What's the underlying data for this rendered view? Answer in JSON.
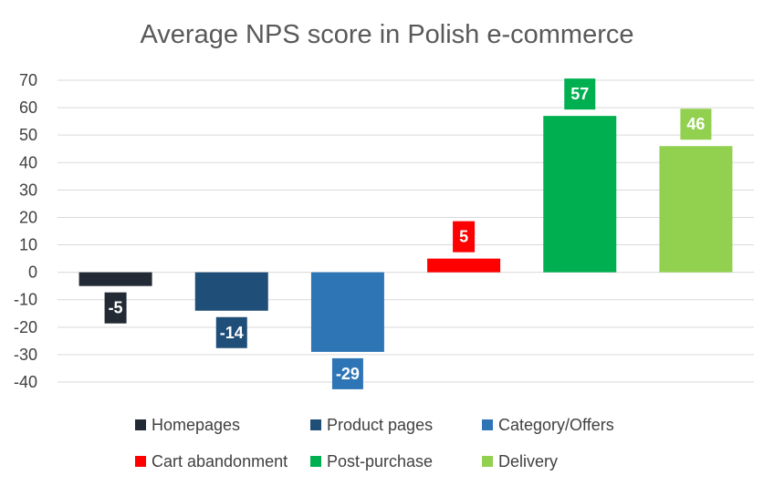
{
  "chart_data": {
    "type": "bar",
    "title": "Average NPS score in Polish e-commerce",
    "xlabel": "",
    "ylabel": "",
    "ylim": [
      -40,
      70
    ],
    "yticks": [
      70,
      60,
      50,
      40,
      30,
      20,
      10,
      0,
      -10,
      -20,
      -30,
      -40
    ],
    "grid": true,
    "legend": "bottom",
    "series": [
      {
        "name": "Homepages",
        "value": -5,
        "color": "#222a35"
      },
      {
        "name": "Product pages",
        "value": -14,
        "color": "#1f4e79"
      },
      {
        "name": "Category/Offers",
        "value": -29,
        "color": "#2e75b6"
      },
      {
        "name": "Cart abandonment",
        "value": 5,
        "color": "#ff0000"
      },
      {
        "name": "Post-purchase",
        "value": 57,
        "color": "#00b050"
      },
      {
        "name": "Delivery",
        "value": 46,
        "color": "#92d050"
      }
    ]
  }
}
